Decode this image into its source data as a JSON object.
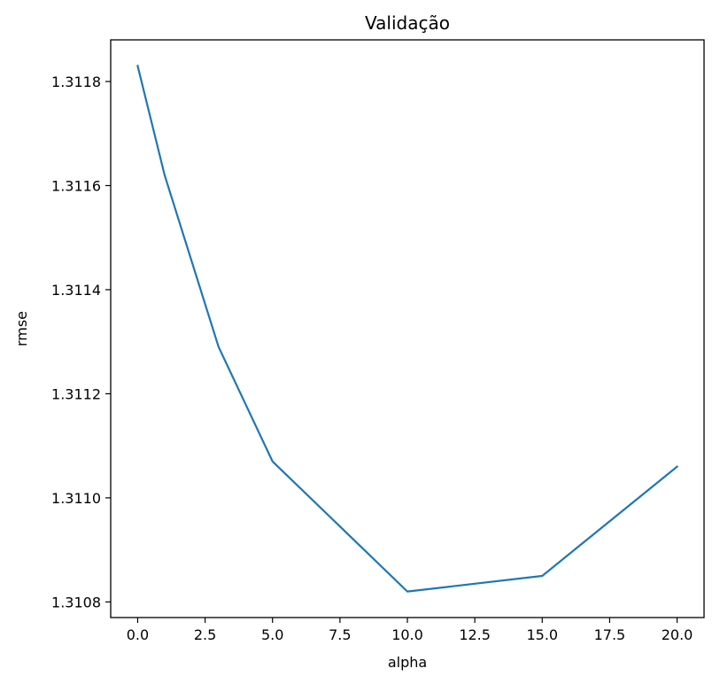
{
  "chart_data": {
    "type": "line",
    "title": "Validação",
    "xlabel": "alpha",
    "ylabel": "rmse",
    "xlim": [
      -1.0,
      21.0
    ],
    "ylim": [
      1.31077,
      1.31188
    ],
    "xticks": [
      0.0,
      2.5,
      5.0,
      7.5,
      10.0,
      12.5,
      15.0,
      17.5,
      20.0
    ],
    "xtick_labels": [
      "0.0",
      "2.5",
      "5.0",
      "7.5",
      "10.0",
      "12.5",
      "15.0",
      "17.5",
      "20.0"
    ],
    "yticks": [
      1.3108,
      1.311,
      1.3112,
      1.3114,
      1.3116,
      1.3118
    ],
    "ytick_labels": [
      "1.3108",
      "1.3110",
      "1.3112",
      "1.3114",
      "1.3116",
      "1.3118"
    ],
    "grid": false,
    "series": [
      {
        "color": "#1f77b4",
        "x": [
          0,
          1,
          3,
          5,
          10,
          15,
          20
        ],
        "y": [
          1.31183,
          1.31162,
          1.31129,
          1.31107,
          1.31082,
          1.31085,
          1.31106
        ]
      }
    ]
  }
}
